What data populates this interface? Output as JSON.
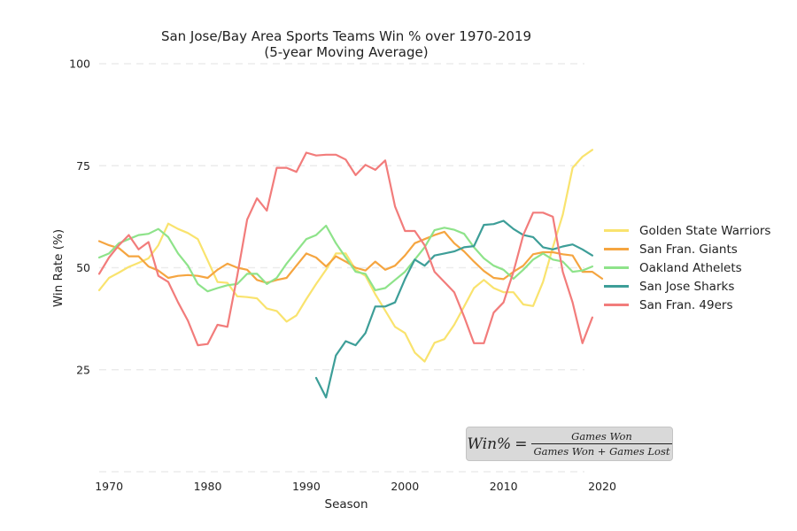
{
  "chart_data": {
    "type": "line",
    "title": "San Jose/Bay Area Sports Teams Win % over 1970-2019",
    "subtitle": "(5-year Moving Average)",
    "xlabel": "Season",
    "ylabel": "Win Rate (%)",
    "xlim": [
      1969,
      2020
    ],
    "ylim": [
      0,
      100
    ],
    "xticks": [
      1970,
      1980,
      1990,
      2000,
      2010,
      2020
    ],
    "yticks": [
      25,
      50,
      75,
      100
    ],
    "grid": "horizontal dashed",
    "legend_position": "right",
    "series": [
      {
        "name": "Golden State Warriors",
        "color": "#f9e36e",
        "start": 1969,
        "values": [
          44.5,
          47.5,
          48.8,
          50.2,
          51.2,
          52.3,
          55.5,
          60.8,
          59.5,
          58.5,
          57,
          51.8,
          46.5,
          46.3,
          43,
          42.8,
          42.5,
          40,
          39.4,
          36.8,
          38.3,
          42.3,
          46,
          49.5,
          53.5,
          53.5,
          49.5,
          48,
          43.5,
          39.5,
          35.5,
          34,
          29.2,
          27,
          31.6,
          32.5,
          36,
          40.5,
          45,
          47,
          45,
          44,
          44,
          41,
          40.6,
          46.5,
          55,
          63,
          74.5,
          77.2,
          78.9
        ]
      },
      {
        "name": "San Fran. Giants",
        "color": "#f5a540",
        "start": 1969,
        "values": [
          56.5,
          55.5,
          54.8,
          52.8,
          52.8,
          50.3,
          49.3,
          47.5,
          48,
          48.2,
          48,
          47.5,
          49.5,
          51,
          50,
          49.5,
          47,
          46.3,
          47,
          47.5,
          50.5,
          53.5,
          52.5,
          50.3,
          52.8,
          51.5,
          50,
          49.3,
          51.5,
          49.5,
          50.5,
          53,
          56,
          57,
          58,
          58.8,
          56,
          54,
          51.5,
          49.2,
          47.5,
          47.2,
          49,
          50.5,
          53.3,
          53.8,
          53.8,
          53.3,
          53,
          49,
          49,
          47.3
        ]
      },
      {
        "name": "Oakland Athelets",
        "color": "#8ee38a",
        "start": 1969,
        "values": [
          52.5,
          53.5,
          56,
          57,
          58,
          58.3,
          59.5,
          57.5,
          53.5,
          50.5,
          46,
          44.2,
          45,
          45.7,
          46,
          48.5,
          48.5,
          46,
          47.5,
          51,
          54,
          57,
          58,
          60.3,
          56,
          52.5,
          49,
          48.5,
          44.5,
          45,
          47,
          49,
          52,
          55,
          59.2,
          59.8,
          59.3,
          58.3,
          55,
          52.3,
          50.5,
          49.5,
          47.3,
          49.5,
          52,
          53.5,
          52,
          51.5,
          49,
          49.3,
          50.3
        ]
      },
      {
        "name": "San Jose Sharks",
        "color": "#3d9e98",
        "start": 1991,
        "values": [
          23,
          18.2,
          28.5,
          32,
          31,
          34,
          40.5,
          40.5,
          41.5,
          47.2,
          52,
          50.5,
          53,
          53.5,
          54,
          55,
          55.3,
          60.5,
          60.7,
          61.5,
          59.5,
          58,
          57.5,
          55,
          54.5,
          55.2,
          55.7,
          54.5,
          53
        ]
      },
      {
        "name": "San Fran. 49ers",
        "color": "#f27c7b",
        "start": 1969,
        "values": [
          48.5,
          52.5,
          55.5,
          58,
          54.5,
          56.3,
          48,
          46.5,
          41.5,
          37,
          31,
          31.3,
          36,
          35.5,
          48,
          61.8,
          67,
          64,
          74.5,
          74.5,
          73.5,
          78.2,
          77.5,
          77.7,
          77.7,
          76.5,
          72.7,
          75.2,
          74,
          76.3,
          65,
          59,
          59,
          55.5,
          49,
          46.5,
          44,
          38,
          31.5,
          31.5,
          39,
          41.5,
          49,
          58,
          63.5,
          63.5,
          62.5,
          49,
          41.5,
          31.5,
          37.8
        ]
      }
    ],
    "annotation": {
      "lhs": "Win%",
      "eq": "=",
      "numerator": "Games Won",
      "denominator": "Games Won + Games Lost"
    }
  }
}
